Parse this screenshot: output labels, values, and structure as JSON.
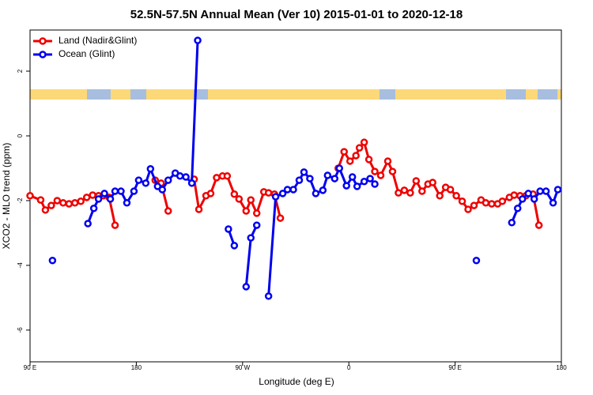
{
  "chart_data": {
    "type": "line",
    "title": "52.5N-57.5N Annual Mean (Ver 10)   2015-01-01 to 2020-12-18",
    "x_label": "Longitude (deg E)",
    "y_label": "XCO2 - MLO trend (ppm)",
    "xlim": [
      90,
      540
    ],
    "ylim": [
      -6.98,
      3.27
    ],
    "xticks": [
      {
        "value": 90,
        "label": "90 E"
      },
      180,
      {
        "value": 270,
        "label": "90 W"
      },
      {
        "value": 360,
        "label": "0"
      },
      {
        "value": 450,
        "label": "90 E"
      },
      {
        "value": 540,
        "label": "180"
      }
    ],
    "yticks": [
      2,
      0,
      -2,
      -4,
      -6
    ],
    "legend": "top-left",
    "series": [
      {
        "name": "Land (Nadir&Glint)",
        "color": "#ee0000",
        "x": [
          90,
          99,
          103,
          108,
          113,
          118,
          123,
          128,
          133,
          138,
          143,
          148,
          152,
          157,
          162,
          179,
          196,
          201,
          207,
          218,
          229,
          233,
          239,
          243,
          248,
          253,
          257,
          263,
          267,
          273,
          277,
          282,
          288,
          292,
          297,
          302,
          326,
          351,
          356,
          361,
          366,
          369,
          373,
          377,
          382,
          387,
          393,
          397,
          402,
          407,
          412,
          417,
          422,
          427,
          431,
          437,
          442,
          446,
          451,
          456,
          461,
          466,
          472,
          476,
          481,
          486,
          490,
          496,
          500,
          505,
          510,
          516,
          521
        ],
        "values": [
          -1.85,
          -1.98,
          -2.29,
          -2.15,
          -2.0,
          -2.07,
          -2.1,
          -2.07,
          -2.02,
          -1.9,
          -1.83,
          -1.85,
          -1.85,
          -1.9,
          -2.76,
          null,
          -1.37,
          -1.46,
          -2.32,
          null,
          -1.34,
          -2.27,
          -1.85,
          -1.78,
          -1.29,
          -1.24,
          -1.24,
          -1.8,
          -1.95,
          -2.32,
          -1.98,
          -2.39,
          -1.73,
          -1.76,
          -1.8,
          -2.54,
          null,
          -1.0,
          -0.49,
          -0.78,
          -0.61,
          -0.37,
          -0.2,
          -0.73,
          -1.1,
          -1.22,
          -0.78,
          -1.1,
          -1.76,
          -1.68,
          -1.76,
          -1.39,
          -1.71,
          -1.49,
          -1.44,
          -1.85,
          -1.59,
          -1.66,
          -1.85,
          -2.02,
          -2.27,
          -2.15,
          -1.98,
          -2.07,
          -2.1,
          -2.1,
          -2.02,
          -1.9,
          -1.83,
          -1.85,
          -1.85,
          -1.8,
          -2.76
        ]
      },
      {
        "name": "Ocean (Glint)",
        "color": "#0000ee",
        "x": [
          109,
          124,
          139,
          144,
          148,
          153,
          158,
          162,
          167,
          172,
          178,
          182,
          188,
          192,
          198,
          202,
          207,
          213,
          217,
          222,
          227,
          232,
          245,
          258,
          263,
          268,
          273,
          277,
          282,
          287,
          292,
          298,
          304,
          308,
          313,
          318,
          322,
          327,
          332,
          338,
          342,
          348,
          352,
          358,
          363,
          367,
          373,
          378,
          382,
          425,
          468,
          483,
          498,
          503,
          507,
          512,
          517,
          522,
          527,
          533,
          537
        ],
        "values": [
          -3.85,
          null,
          -2.71,
          -2.24,
          -1.95,
          -1.78,
          -1.95,
          -1.71,
          -1.71,
          -2.07,
          -1.71,
          -1.37,
          -1.46,
          -1.02,
          -1.56,
          -1.66,
          -1.37,
          -1.15,
          -1.24,
          -1.27,
          -1.46,
          2.95,
          null,
          -2.88,
          -3.39,
          null,
          -4.66,
          -3.15,
          -2.76,
          null,
          -4.95,
          -1.88,
          -1.78,
          -1.66,
          -1.66,
          -1.37,
          -1.12,
          -1.32,
          -1.78,
          -1.68,
          -1.22,
          -1.32,
          -1.0,
          -1.54,
          -1.27,
          -1.56,
          -1.41,
          -1.32,
          -1.49,
          null,
          -3.85,
          null,
          -2.68,
          -2.24,
          -1.95,
          -1.78,
          -1.95,
          -1.71,
          -1.71,
          -2.07,
          -1.66
        ]
      }
    ]
  }
}
